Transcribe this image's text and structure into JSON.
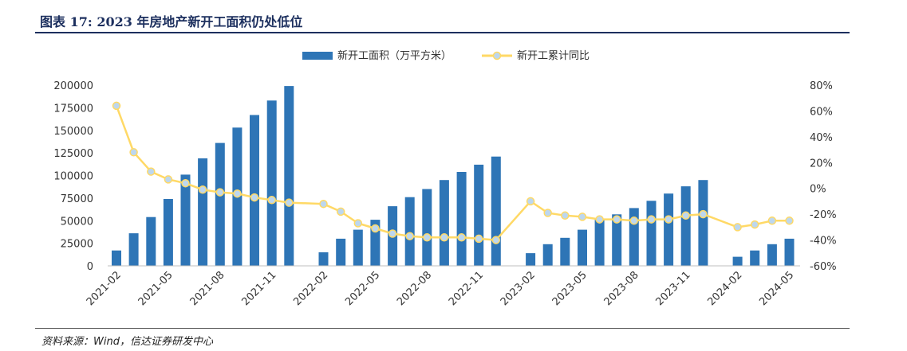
{
  "figure": {
    "title": "图表 17:  2023 年房地产新开工面积仍处低位",
    "source": "资料来源：Wind，信达证券研发中心"
  },
  "chart_data": {
    "type": "bar+line",
    "categories": [
      "2021-02",
      "2021-03",
      "2021-04",
      "2021-05",
      "2021-06",
      "2021-07",
      "2021-08",
      "2021-09",
      "2021-10",
      "2021-11",
      "2021-12",
      "2022-02",
      "2022-03",
      "2022-04",
      "2022-05",
      "2022-06",
      "2022-07",
      "2022-08",
      "2022-09",
      "2022-10",
      "2022-11",
      "2022-12",
      "2023-02",
      "2023-03",
      "2023-04",
      "2023-05",
      "2023-06",
      "2023-07",
      "2023-08",
      "2023-09",
      "2023-10",
      "2023-11",
      "2023-12",
      "2024-02",
      "2024-03",
      "2024-04",
      "2024-05"
    ],
    "x_tick_labels": [
      "2021-02",
      "2021-05",
      "2021-08",
      "2021-11",
      "2022-02",
      "2022-05",
      "2022-08",
      "2022-11",
      "2023-02",
      "2023-05",
      "2023-08",
      "2023-11",
      "2024-02",
      "2024-05"
    ],
    "series": [
      {
        "name": "新开工面积（万平方米）",
        "type": "bar",
        "axis": "left",
        "color": "#2e75b6",
        "values": [
          17000,
          36000,
          54000,
          74000,
          101000,
          119000,
          136000,
          153000,
          167000,
          183000,
          199000,
          15000,
          30000,
          40000,
          51000,
          66000,
          76000,
          85000,
          95000,
          104000,
          112000,
          121000,
          14000,
          24000,
          31000,
          40000,
          51000,
          57000,
          64000,
          72000,
          80000,
          88000,
          95000,
          10000,
          17000,
          24000,
          30000
        ]
      },
      {
        "name": "新开工累计同比",
        "type": "line",
        "axis": "right",
        "color": "#ffd966",
        "marker_color": "#bdd7ee",
        "values": [
          64,
          28,
          13,
          7,
          4,
          -1,
          -3,
          -4,
          -7,
          -9,
          -11,
          -12,
          -18,
          -27,
          -31,
          -35,
          -37,
          -38,
          -38,
          -38,
          -39,
          -40,
          -10,
          -19,
          -21,
          -22,
          -24,
          -24,
          -25,
          -24,
          -24,
          -21,
          -20,
          -30,
          -28,
          -25,
          -25
        ]
      }
    ],
    "y_left": {
      "min": 0,
      "max": 200000,
      "ticks": [
        "0",
        "25000",
        "50000",
        "75000",
        "100000",
        "125000",
        "150000",
        "175000",
        "200000"
      ]
    },
    "y_right": {
      "min": -60,
      "max": 80,
      "ticks": [
        "-60%",
        "-40%",
        "-20%",
        "0%",
        "20%",
        "40%",
        "60%",
        "80%"
      ]
    },
    "legend": {
      "position": "top-center"
    },
    "grid": false
  }
}
